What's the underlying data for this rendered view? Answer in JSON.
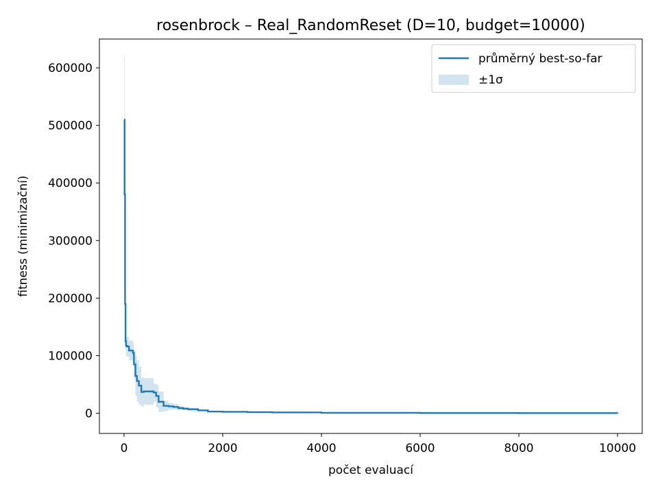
{
  "chart_data": {
    "type": "line",
    "title": "rosenbrock – Real_RandomReset (D=10, budget=10000)",
    "xlabel": "počet evaluací",
    "ylabel": "fitness (minimizační)",
    "xlim": [
      -500,
      10500
    ],
    "ylim": [
      -35000,
      650000
    ],
    "xticks": [
      0,
      2000,
      4000,
      6000,
      8000,
      10000
    ],
    "xtick_labels": [
      "0",
      "2000",
      "4000",
      "6000",
      "8000",
      "10000"
    ],
    "yticks": [
      0,
      100000,
      200000,
      300000,
      400000,
      500000,
      600000
    ],
    "ytick_labels": [
      "0",
      "100000",
      "200000",
      "300000",
      "400000",
      "500000",
      "600000"
    ],
    "grid": false,
    "legend_position": "top-right",
    "legend": [
      {
        "label": "průměrný best-so-far",
        "kind": "line"
      },
      {
        "label": "±1σ",
        "kind": "band"
      }
    ],
    "colors": {
      "line": "#1f77b4",
      "band": "#1f77b4"
    },
    "series": [
      {
        "name": "průměrný best-so-far",
        "x": [
          0,
          10,
          20,
          30,
          40,
          60,
          100,
          180,
          200,
          230,
          260,
          300,
          350,
          400,
          600,
          650,
          700,
          800,
          900,
          1000,
          1100,
          1200,
          1300,
          1500,
          1700,
          2000,
          2500,
          3000,
          4000,
          6000,
          8000,
          10000
        ],
        "y": [
          510000,
          380000,
          190000,
          125000,
          117000,
          116000,
          109000,
          105000,
          85000,
          65000,
          56000,
          48000,
          37000,
          38000,
          36000,
          30000,
          20000,
          13000,
          12000,
          11000,
          9000,
          8000,
          7000,
          5000,
          3000,
          2500,
          2000,
          1500,
          800,
          400,
          250,
          150
        ]
      }
    ],
    "band": {
      "name": "±1σ",
      "x": [
        0,
        10,
        20,
        30,
        40,
        60,
        100,
        180,
        200,
        230,
        260,
        300,
        350,
        400,
        600,
        650,
        700,
        800,
        900,
        1000,
        1100,
        1200,
        1300,
        1500,
        1700,
        2000,
        2500,
        3000,
        4000,
        6000,
        8000,
        10000
      ],
      "lower": [
        400000,
        270000,
        130000,
        110000,
        100000,
        98000,
        92000,
        88000,
        60000,
        30000,
        20000,
        15000,
        12000,
        15000,
        20000,
        10000,
        2000,
        4000,
        6000,
        6500,
        5500,
        5000,
        4500,
        3500,
        2200,
        2000,
        1700,
        1200,
        600,
        300,
        200,
        100
      ],
      "upper": [
        620000,
        490000,
        250000,
        140000,
        133000,
        133000,
        126000,
        122000,
        110000,
        100000,
        92000,
        81000,
        62000,
        61000,
        52000,
        50000,
        38000,
        22000,
        18000,
        16000,
        12500,
        11000,
        9500,
        6500,
        3800,
        3000,
        2300,
        1800,
        1000,
        500,
        300,
        200
      ]
    }
  }
}
